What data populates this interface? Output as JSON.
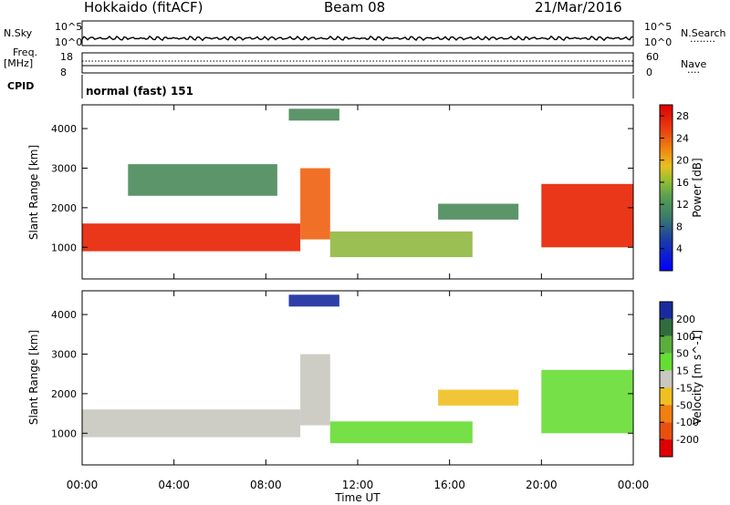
{
  "header": {
    "radar": "Hokkaido (fitACF)",
    "beam": "Beam 08",
    "date": "21/Mar/2016"
  },
  "side_labels": {
    "nsky": "N.Sky",
    "freq": "Freq.",
    "freq_unit": "[MHz]",
    "cpid": "CPID",
    "nsearch": "N.Search",
    "nsearch_dots": "........",
    "nave": "Nave",
    "nave_dots": "...."
  },
  "noise_axis": {
    "left_ticks": [
      "10^5",
      "10^0"
    ],
    "right_ticks": [
      "10^5",
      "10^0"
    ]
  },
  "freq_axis": {
    "left_ticks": [
      "18",
      "8"
    ],
    "right_ticks": [
      "60",
      "0"
    ]
  },
  "cpid_text": "normal (fast) 151",
  "chart_data": [
    {
      "type": "heatmap",
      "title": "",
      "ylabel": "Slant Range [km]",
      "xlabel": "",
      "xlim": [
        0,
        24
      ],
      "ylim": [
        200,
        4600
      ],
      "yticks": [
        1000,
        2000,
        3000,
        4000
      ],
      "colorbar": {
        "label": "Power [dB]",
        "ticks": [
          4,
          8,
          12,
          16,
          20,
          24,
          28
        ],
        "range": [
          0,
          30
        ]
      },
      "echo_regions": [
        {
          "t": [
            0.0,
            9.5
          ],
          "r": [
            900,
            1600
          ],
          "level": 27
        },
        {
          "t": [
            9.5,
            10.8
          ],
          "r": [
            1200,
            3000
          ],
          "level": 24
        },
        {
          "t": [
            10.8,
            17.0
          ],
          "r": [
            750,
            1400
          ],
          "level": 16
        },
        {
          "t": [
            15.5,
            19.0
          ],
          "r": [
            1700,
            2100
          ],
          "level": 14
        },
        {
          "t": [
            20.0,
            24.0
          ],
          "r": [
            1000,
            2600
          ],
          "level": 25
        },
        {
          "t": [
            2.0,
            8.5
          ],
          "r": [
            2300,
            3100
          ],
          "level": 15
        },
        {
          "t": [
            9.0,
            11.2
          ],
          "r": [
            4200,
            4500
          ],
          "level": 10
        }
      ]
    },
    {
      "type": "heatmap",
      "title": "",
      "ylabel": "Slant Range [km]",
      "xlabel": "Time UT",
      "xlim": [
        0,
        24
      ],
      "ylim": [
        200,
        4600
      ],
      "yticks": [
        1000,
        2000,
        3000,
        4000
      ],
      "xticks": [
        "00:00",
        "04:00",
        "08:00",
        "12:00",
        "16:00",
        "20:00",
        "00:00"
      ],
      "colorbar": {
        "label": "Velocity [m s^-1]",
        "ticks": [
          200,
          100,
          50,
          15,
          -15,
          -50,
          -100,
          -200
        ],
        "colors": [
          "#1a2a9e",
          "#2f6e3c",
          "#5aae3c",
          "#66dd33",
          "#c8c8c0",
          "#f0c020",
          "#f08010",
          "#e85010",
          "#e00000"
        ]
      },
      "echo_regions": [
        {
          "t": [
            0.0,
            9.5
          ],
          "r": [
            900,
            1600
          ],
          "velocity": 0
        },
        {
          "t": [
            9.5,
            10.8
          ],
          "r": [
            1200,
            3000
          ],
          "velocity": 0
        },
        {
          "t": [
            10.8,
            17.0
          ],
          "r": [
            750,
            1300
          ],
          "velocity": 60
        },
        {
          "t": [
            15.5,
            19.0
          ],
          "r": [
            1700,
            2100
          ],
          "velocity": -40
        },
        {
          "t": [
            20.0,
            24.0
          ],
          "r": [
            1000,
            2600
          ],
          "velocity": 50
        },
        {
          "t": [
            9.0,
            11.2
          ],
          "r": [
            4200,
            4500
          ],
          "velocity": 200
        }
      ]
    }
  ]
}
